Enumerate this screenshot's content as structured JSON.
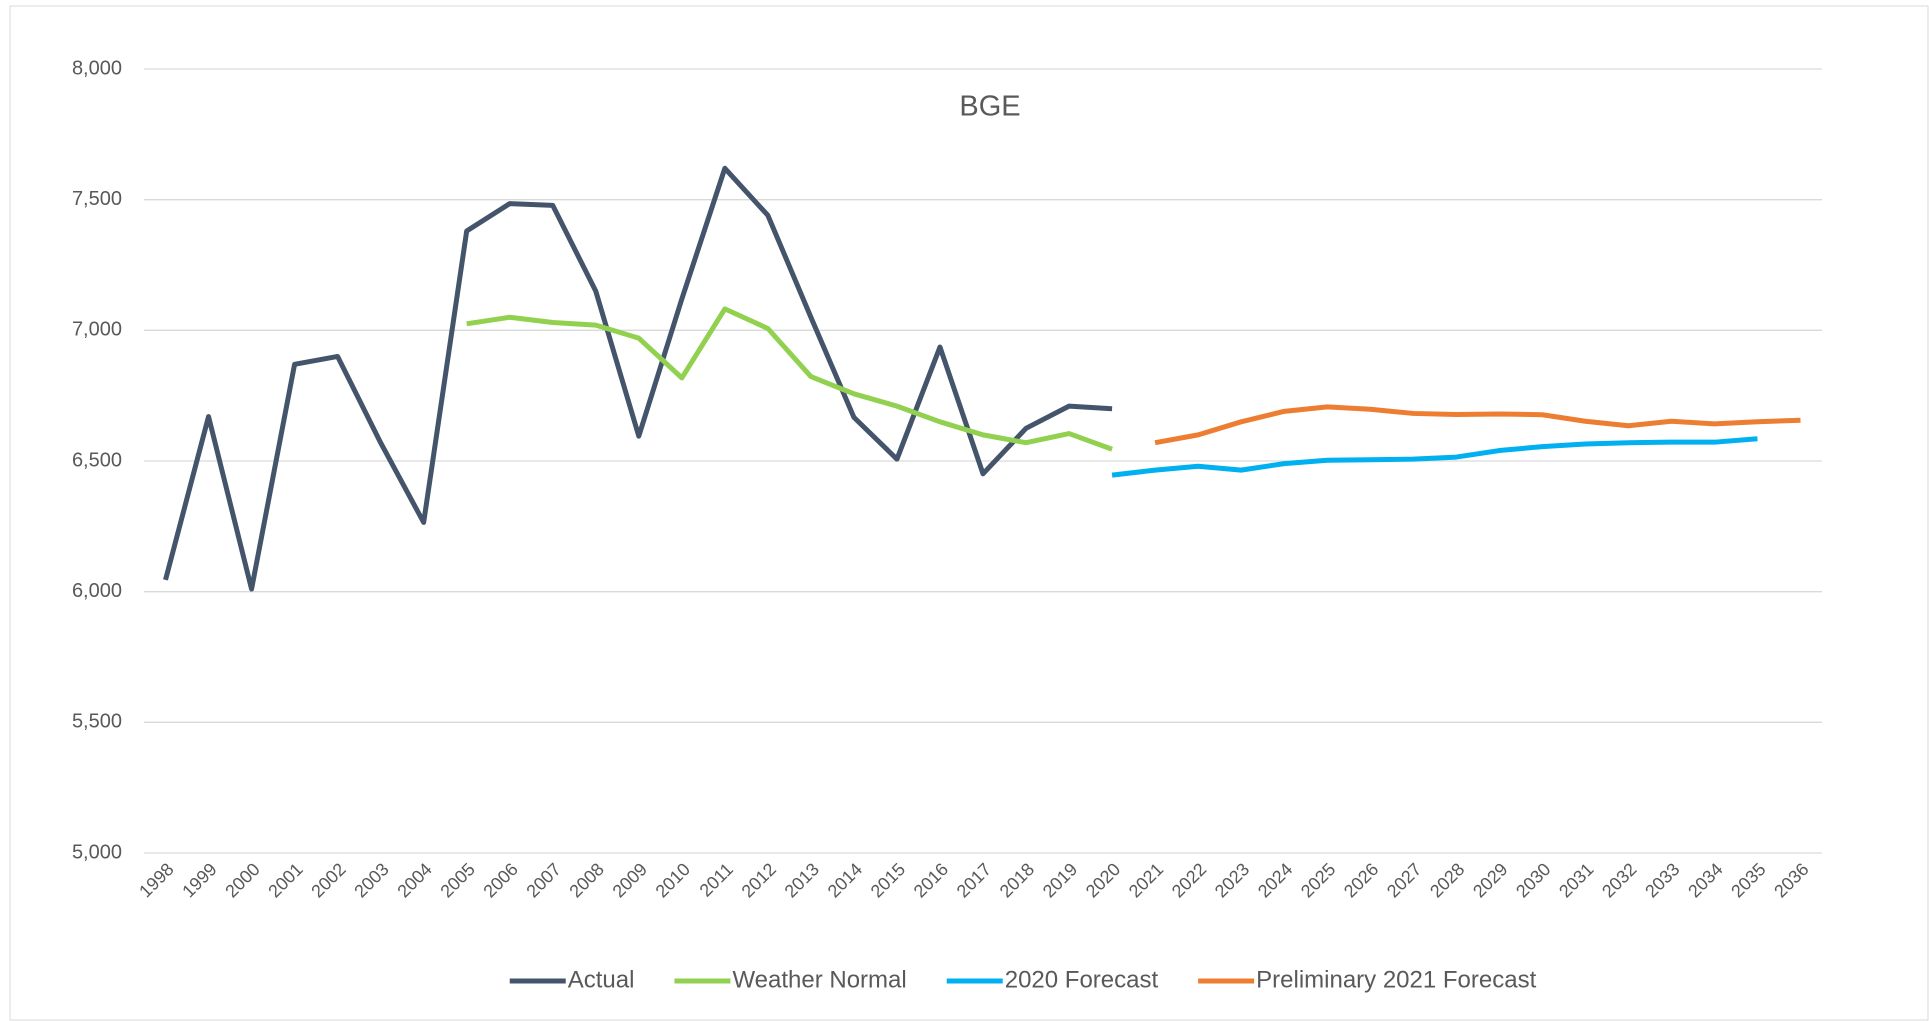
{
  "chart_data": {
    "type": "line",
    "title": "BGE",
    "categories": [
      "1998",
      "1999",
      "2000",
      "2001",
      "2002",
      "2003",
      "2004",
      "2005",
      "2006",
      "2007",
      "2008",
      "2009",
      "2010",
      "2011",
      "2012",
      "2013",
      "2014",
      "2015",
      "2016",
      "2017",
      "2018",
      "2019",
      "2020",
      "2021",
      "2022",
      "2023",
      "2024",
      "2025",
      "2026",
      "2027",
      "2028",
      "2029",
      "2030",
      "2031",
      "2032",
      "2033",
      "2034",
      "2035",
      "2036"
    ],
    "series": [
      {
        "name": "Actual",
        "color": "#44546a",
        "values": [
          6045,
          6670,
          6010,
          6870,
          6900,
          6570,
          6265,
          7380,
          7485,
          7478,
          7150,
          6595,
          7120,
          7620,
          7440,
          7050,
          6667,
          6507,
          6936,
          6451,
          6625,
          6710,
          6700,
          null,
          null,
          null,
          null,
          null,
          null,
          null,
          null,
          null,
          null,
          null,
          null,
          null,
          null,
          null,
          null
        ]
      },
      {
        "name": "Weather Normal",
        "color": "#92d050",
        "values": [
          null,
          null,
          null,
          null,
          null,
          null,
          null,
          7025,
          7050,
          7030,
          7020,
          6970,
          6818,
          7082,
          7007,
          6823,
          6757,
          6710,
          6650,
          6600,
          6570,
          6605,
          6545,
          null,
          null,
          null,
          null,
          null,
          null,
          null,
          null,
          null,
          null,
          null,
          null,
          null,
          null,
          null,
          null
        ]
      },
      {
        "name": "2020 Forecast",
        "color": "#00b0f0",
        "values": [
          null,
          null,
          null,
          null,
          null,
          null,
          null,
          null,
          null,
          null,
          null,
          null,
          null,
          null,
          null,
          null,
          null,
          null,
          null,
          null,
          null,
          null,
          6446,
          6465,
          6480,
          6465,
          6490,
          6503,
          6505,
          6507,
          6515,
          6540,
          6555,
          6565,
          6570,
          6572,
          6572,
          6585,
          null
        ]
      },
      {
        "name": "Preliminary 2021 Forecast",
        "color": "#ed7d31",
        "values": [
          null,
          null,
          null,
          null,
          null,
          null,
          null,
          null,
          null,
          null,
          null,
          null,
          null,
          null,
          null,
          null,
          null,
          null,
          null,
          null,
          null,
          null,
          null,
          6570,
          6600,
          6650,
          6690,
          6707,
          6698,
          6682,
          6678,
          6680,
          6677,
          6652,
          6635,
          6652,
          6642,
          6650,
          6656
        ]
      }
    ],
    "ylim": [
      5000,
      8000
    ],
    "yticks": [
      {
        "value": 5000,
        "label": "5,000"
      },
      {
        "value": 5500,
        "label": "5,500"
      },
      {
        "value": 6000,
        "label": "6,000"
      },
      {
        "value": 6500,
        "label": "6,500"
      },
      {
        "value": 7000,
        "label": "7,000"
      },
      {
        "value": 7500,
        "label": "7,500"
      },
      {
        "value": 8000,
        "label": "8,000"
      }
    ],
    "grid": true,
    "legend": "bottom"
  }
}
